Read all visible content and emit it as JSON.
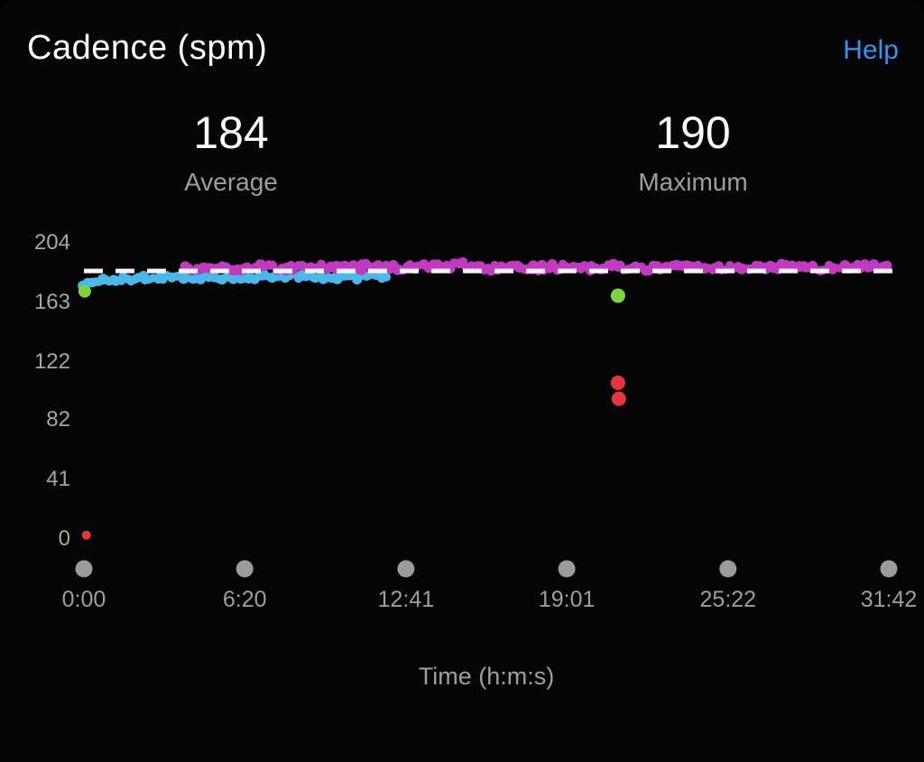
{
  "header": {
    "title": "Cadence (spm)",
    "help_label": "Help"
  },
  "stats": [
    {
      "value": "184",
      "label": "Average"
    },
    {
      "value": "190",
      "label": "Maximum"
    }
  ],
  "colors": {
    "background": "#050505",
    "title_text": "#ffffff",
    "help_link": "#2f96f0",
    "axis_text": "#9e9e9e",
    "tick_dot": "#9b9b9b",
    "average_line": "#ffffff"
  },
  "chart_data": {
    "type": "scatter",
    "title": "Cadence (spm)",
    "xlabel": "Time (h:m:s)",
    "ylabel": "",
    "grid": false,
    "legend": "none",
    "ylim": [
      0,
      204
    ],
    "y_ticks": [
      204,
      163,
      122,
      82,
      41,
      0
    ],
    "xlim_seconds": [
      0,
      1902
    ],
    "x_tick_seconds": [
      0,
      380,
      761,
      1141,
      1522,
      1902
    ],
    "x_ticks": [
      "0:00",
      "6:20",
      "12:41",
      "19:01",
      "25:22",
      "31:42"
    ],
    "average_line": {
      "value": 184,
      "style": "dashed",
      "color": "#ffffff"
    },
    "summary": {
      "average": 184,
      "maximum": 190
    },
    "series": [
      {
        "name": "cadence-segment-1",
        "color": "#49b8ea",
        "band": true,
        "jitter": 1.8,
        "points": [
          [
            0,
            175
          ],
          [
            60,
            178
          ],
          [
            120,
            179
          ],
          [
            180,
            180
          ],
          [
            240,
            179
          ],
          [
            300,
            180
          ],
          [
            360,
            179
          ],
          [
            420,
            180
          ],
          [
            480,
            181
          ],
          [
            540,
            180
          ],
          [
            600,
            179
          ],
          [
            660,
            180
          ],
          [
            720,
            180
          ]
        ]
      },
      {
        "name": "cadence-segment-2",
        "color": "#c13ac1",
        "band": true,
        "jitter": 2.2,
        "points": [
          [
            240,
            185
          ],
          [
            300,
            186
          ],
          [
            360,
            186
          ],
          [
            420,
            187
          ],
          [
            480,
            186
          ],
          [
            540,
            187
          ],
          [
            600,
            186
          ],
          [
            660,
            187
          ],
          [
            720,
            186
          ],
          [
            780,
            187
          ],
          [
            840,
            187
          ],
          [
            900,
            188
          ],
          [
            960,
            186
          ],
          [
            1020,
            187
          ],
          [
            1080,
            186
          ],
          [
            1140,
            187
          ],
          [
            1200,
            186
          ],
          [
            1260,
            187
          ],
          [
            1320,
            186
          ],
          [
            1380,
            187
          ],
          [
            1440,
            186
          ],
          [
            1500,
            186
          ],
          [
            1560,
            187
          ],
          [
            1620,
            186
          ],
          [
            1680,
            187
          ],
          [
            1740,
            186
          ],
          [
            1800,
            186
          ],
          [
            1860,
            187
          ],
          [
            1902,
            186
          ]
        ]
      },
      {
        "name": "outliers-green",
        "color": "#7ed63e",
        "band": false,
        "radius": 8,
        "points": [
          [
            2,
            170,
            7
          ],
          [
            1262,
            167,
            8
          ]
        ]
      },
      {
        "name": "outliers-red",
        "color": "#e8343c",
        "band": false,
        "radius": 8,
        "points": [
          [
            1262,
            107,
            8
          ],
          [
            1264,
            96,
            8
          ],
          [
            6,
            2,
            5
          ]
        ]
      }
    ]
  }
}
